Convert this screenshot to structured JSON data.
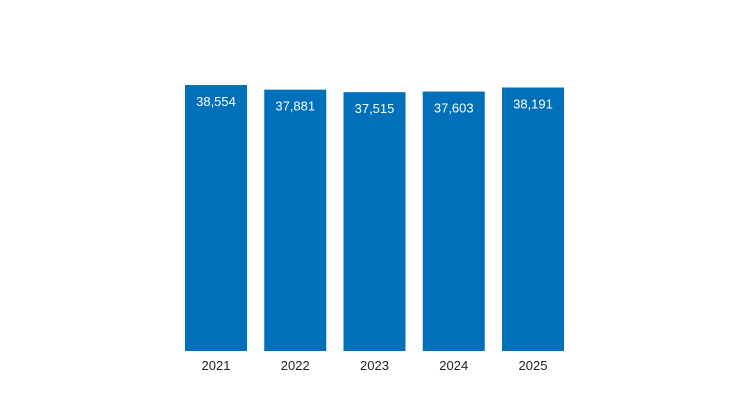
{
  "chart_data": {
    "type": "bar",
    "categories": [
      "2021",
      "2022",
      "2023",
      "2024",
      "2025"
    ],
    "values": [
      38554,
      37881,
      37515,
      37603,
      38191
    ],
    "value_labels": [
      "38,554",
      "37,881",
      "37,515",
      "37,603",
      "38,191"
    ],
    "title": "",
    "xlabel": "",
    "ylabel": "",
    "ylim": [
      0,
      38554
    ],
    "grid": false,
    "legend": "none",
    "bar_color": "#0070BA",
    "label_color": "#FFFFFF",
    "tick_color": "#222222"
  }
}
